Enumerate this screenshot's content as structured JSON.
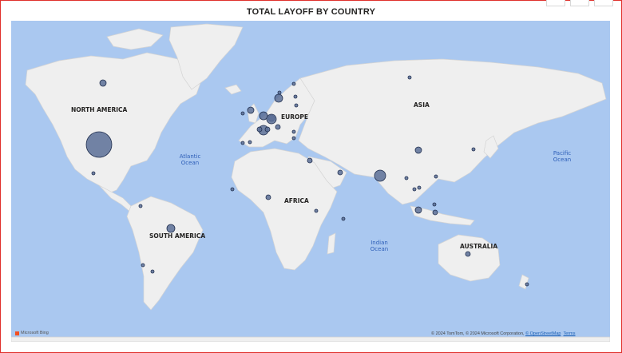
{
  "title": "TOTAL LAYOFF BY COUNTRY",
  "map": {
    "continent_labels": [
      "NORTH AMERICA",
      "EUROPE",
      "ASIA",
      "AFRICA",
      "SOUTH AMERICA",
      "AUSTRALIA"
    ],
    "ocean_labels": [
      "Atlantic\nOcean",
      "Pacific\nOcean",
      "Indian\nOcean"
    ],
    "colors": {
      "water": "#aac8f0",
      "land": "#efefef",
      "bubble_fill": "#5a6f96",
      "bubble_stroke": "#22304f"
    }
  },
  "attribution": {
    "brand": "Microsoft Bing",
    "text": "© 2024 TomTom, © 2024 Microsoft Corporation,",
    "link1": "© OpenStreetMap",
    "link2": "Terms"
  }
}
